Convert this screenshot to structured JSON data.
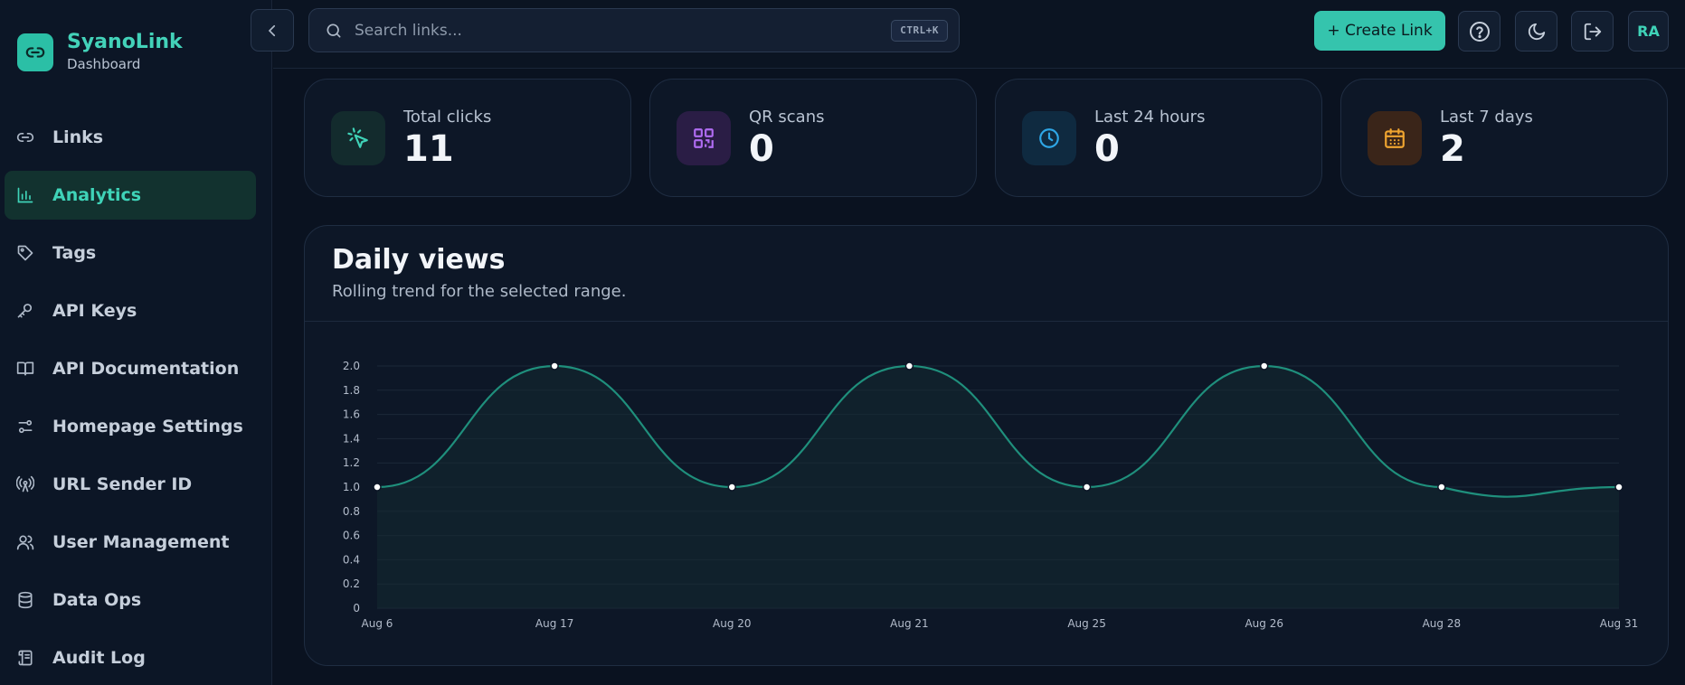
{
  "brand": {
    "title": "SyanoLink",
    "subtitle": "Dashboard"
  },
  "sidebar": {
    "items": [
      {
        "label": "Links",
        "icon": "link-icon",
        "active": false
      },
      {
        "label": "Analytics",
        "icon": "bar-chart-icon",
        "active": true
      },
      {
        "label": "Tags",
        "icon": "tag-icon",
        "active": false
      },
      {
        "label": "API Keys",
        "icon": "key-icon",
        "active": false
      },
      {
        "label": "API Documentation",
        "icon": "book-icon",
        "active": false
      },
      {
        "label": "Homepage Settings",
        "icon": "sliders-icon",
        "active": false
      },
      {
        "label": "URL Sender ID",
        "icon": "radio-tower-icon",
        "active": false
      },
      {
        "label": "User Management",
        "icon": "users-icon",
        "active": false
      },
      {
        "label": "Data Ops",
        "icon": "database-icon",
        "active": false
      },
      {
        "label": "Audit Log",
        "icon": "scroll-icon",
        "active": false
      }
    ]
  },
  "topbar": {
    "search_placeholder": "Search links...",
    "search_shortcut": "CTRL+K",
    "create_label": "+ Create Link",
    "avatar_initials": "RA"
  },
  "stats": [
    {
      "label": "Total clicks",
      "value": "11",
      "icon": "cursor-click-icon",
      "color": "#3fd3b8"
    },
    {
      "label": "QR scans",
      "value": "0",
      "icon": "qr-code-icon",
      "color": "#b06cf2"
    },
    {
      "label": "Last 24 hours",
      "value": "0",
      "icon": "clock-icon",
      "color": "#2ea6e6"
    },
    {
      "label": "Last 7 days",
      "value": "2",
      "icon": "calendar-icon",
      "color": "#f0a530"
    }
  ],
  "chart": {
    "title": "Daily views",
    "subtitle": "Rolling trend for the selected range."
  },
  "colors": {
    "accent": "#35c4ad",
    "line": "#1f8f7c",
    "bg": "#0a1220"
  },
  "chart_data": {
    "type": "line",
    "title": "Daily views",
    "subtitle": "Rolling trend for the selected range.",
    "x": [
      "Aug 6",
      "Aug 17",
      "Aug 20",
      "Aug 21",
      "Aug 25",
      "Aug 26",
      "Aug 28",
      "Aug 31"
    ],
    "series": [
      {
        "values": [
          1,
          2,
          1,
          2,
          1,
          2,
          1,
          1
        ]
      }
    ],
    "ylim": [
      0,
      2.0
    ],
    "yticks": [
      "0",
      "0.2",
      "0.4",
      "0.6",
      "0.8",
      "1.0",
      "1.2",
      "1.4",
      "1.6",
      "1.8",
      "2.0"
    ],
    "grid": true,
    "smooth": true,
    "area_fill": true
  }
}
